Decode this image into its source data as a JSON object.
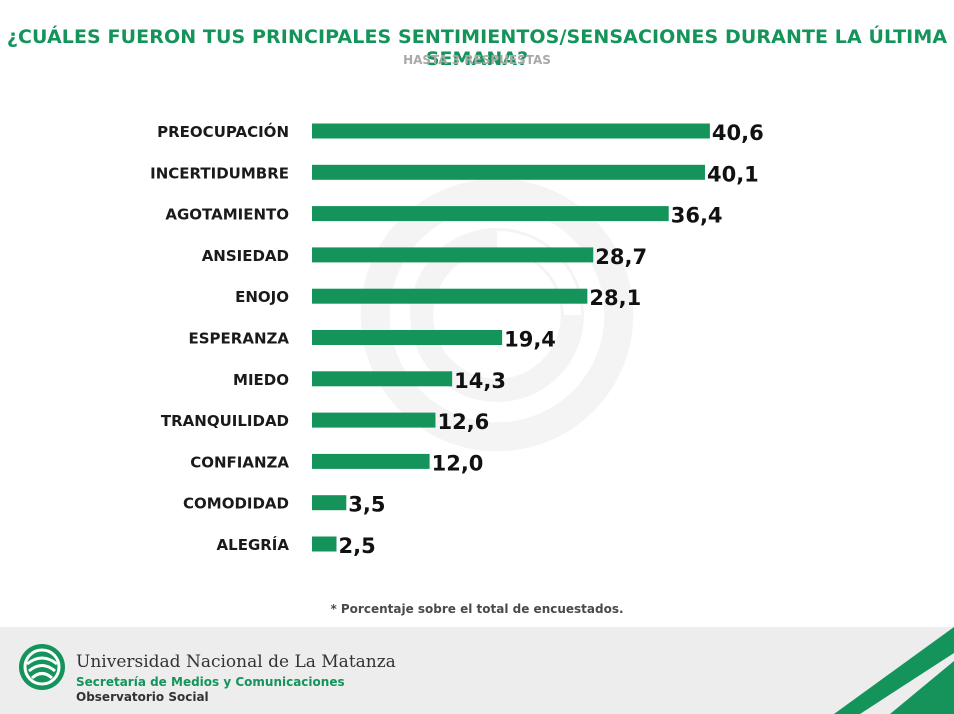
{
  "header": {
    "title": "¿CUÁLES FUERON TUS PRINCIPALES SENTIMIENTOS/SENSACIONES DURANTE LA ÚLTIMA SEMANA?",
    "subtitle": "HASTA 3 RESPUESTAS"
  },
  "chart_data": {
    "type": "bar",
    "orientation": "horizontal",
    "categories": [
      "PREOCUPACIÓN",
      "INCERTIDUMBRE",
      "AGOTAMIENTO",
      "ANSIEDAD",
      "ENOJO",
      "ESPERANZA",
      "MIEDO",
      "TRANQUILIDAD",
      "CONFIANZA",
      "COMODIDAD",
      "ALEGRÍA"
    ],
    "values": [
      40.6,
      40.1,
      36.4,
      28.7,
      28.1,
      19.4,
      14.3,
      12.6,
      12.0,
      3.5,
      2.5
    ],
    "value_labels": [
      "40,6",
      "40,1",
      "36,4",
      "28,7",
      "28,1",
      "19,4",
      "14,3",
      "12,6",
      "12,0",
      "3,5",
      "2,5"
    ],
    "bar_color": "#14945a",
    "grid": false,
    "legend": false
  },
  "footnote": "* Porcentaje sobre el total de encuestados.",
  "footer": {
    "university": "Universidad Nacional de La Matanza",
    "department": "Secretaría de Medios y Comunicaciones",
    "observatory": "Observatorio Social"
  },
  "colors": {
    "brand_green": "#14945a",
    "footer_bg": "#ededed",
    "subtitle_gray": "#a9a9a9"
  },
  "icons": {
    "logo": "unlam-logo-icon",
    "watermark": "unlam-watermark-icon",
    "corner": "green-stripes-decoration"
  }
}
